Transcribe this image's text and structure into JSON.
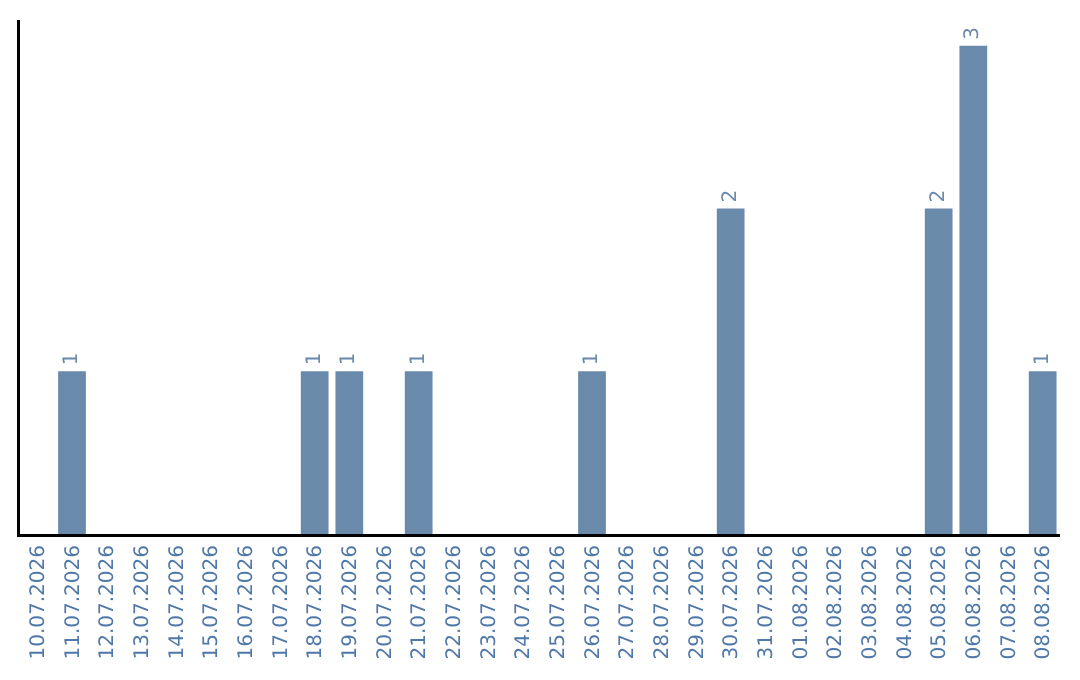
{
  "chart_data": {
    "type": "bar",
    "categories": [
      "10.07.2026",
      "11.07.2026",
      "12.07.2026",
      "13.07.2026",
      "14.07.2026",
      "15.07.2026",
      "16.07.2026",
      "17.07.2026",
      "18.07.2026",
      "19.07.2026",
      "20.07.2026",
      "21.07.2026",
      "22.07.2026",
      "23.07.2026",
      "24.07.2026",
      "25.07.2026",
      "26.07.2026",
      "27.07.2026",
      "28.07.2026",
      "29.07.2026",
      "30.07.2026",
      "31.07.2026",
      "01.08.2026",
      "02.08.2026",
      "03.08.2026",
      "04.08.2026",
      "05.08.2026",
      "06.08.2026",
      "07.08.2026",
      "08.08.2026"
    ],
    "values": [
      0,
      1,
      0,
      0,
      0,
      0,
      0,
      0,
      1,
      1,
      0,
      1,
      0,
      0,
      0,
      0,
      1,
      0,
      0,
      0,
      2,
      0,
      0,
      0,
      0,
      0,
      2,
      3,
      0,
      1
    ],
    "value_labels": [
      null,
      "1",
      null,
      null,
      null,
      null,
      null,
      null,
      "1",
      "1",
      null,
      "1",
      null,
      null,
      null,
      null,
      "1",
      null,
      null,
      null,
      "2",
      null,
      null,
      null,
      null,
      null,
      "2",
      "3",
      null,
      "1"
    ],
    "color": "#6a8aab",
    "grid": false,
    "legend": false,
    "tick_labels": "x"
  }
}
